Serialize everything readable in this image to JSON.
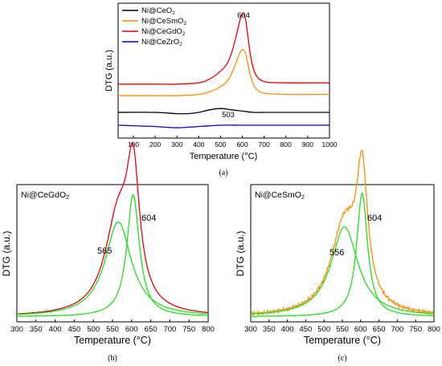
{
  "colors": {
    "ceo2": "#000000",
    "cesmo2": "#ff8c00",
    "cegdo2": "#e8000b",
    "cezro2": "#0000e0",
    "fit": "#22dd22"
  },
  "chart_data": [
    {
      "type": "line",
      "panel_label": "(a)",
      "xlabel": "Temperature (°C)",
      "ylabel": "DTG (a.u.)",
      "xlim": [
        30,
        1000
      ],
      "xticks": [
        100,
        200,
        300,
        400,
        500,
        600,
        700,
        800,
        900,
        1000
      ],
      "x_tick_labels": [
        "100",
        "200",
        "300",
        "400",
        "500",
        "600",
        "700",
        "800",
        "900",
        "1000"
      ],
      "y_scale": "arbitrary units, no tick values",
      "legend_placement": "top-left",
      "series": [
        {
          "name": "Ni@CeO2",
          "legend_base": "Ni@CeO",
          "legend_sub": "2",
          "color_key": "ceo2",
          "x": [
            30,
            200,
            300,
            350,
            400,
            450,
            503,
            550,
            600,
            650,
            700,
            800,
            1000
          ],
          "y": [
            0.2,
            0.2,
            0.19,
            0.19,
            0.2,
            0.22,
            0.23,
            0.22,
            0.21,
            0.2,
            0.2,
            0.2,
            0.2
          ]
        },
        {
          "name": "Ni@CeSmO2",
          "legend_base": "Ni@CeSmO",
          "legend_sub": "2",
          "color_key": "cesmo2",
          "x": [
            30,
            200,
            300,
            400,
            450,
            500,
            530,
            550,
            570,
            585,
            595,
            604,
            615,
            625,
            640,
            660,
            700,
            800,
            1000
          ],
          "y": [
            0.33,
            0.33,
            0.33,
            0.34,
            0.36,
            0.4,
            0.44,
            0.5,
            0.58,
            0.65,
            0.68,
            0.69,
            0.66,
            0.58,
            0.47,
            0.39,
            0.35,
            0.34,
            0.34
          ]
        },
        {
          "name": "Ni@CeGdO2",
          "legend_base": "Ni@CeGdO",
          "legend_sub": "2",
          "color_key": "cegdo2",
          "x": [
            30,
            200,
            300,
            400,
            450,
            500,
            530,
            550,
            570,
            585,
            595,
            604,
            615,
            625,
            640,
            660,
            700,
            800,
            1000
          ],
          "y": [
            0.42,
            0.42,
            0.42,
            0.43,
            0.46,
            0.52,
            0.58,
            0.66,
            0.78,
            0.89,
            0.95,
            0.97,
            0.92,
            0.8,
            0.62,
            0.5,
            0.44,
            0.43,
            0.43
          ]
        },
        {
          "name": "Ni@CeZrO2",
          "legend_base": "Ni@CeZrO",
          "legend_sub": "2",
          "color_key": "cezro2",
          "x": [
            30,
            200,
            300,
            400,
            500,
            600,
            700,
            800,
            1000
          ],
          "y": [
            0.1,
            0.09,
            0.08,
            0.09,
            0.1,
            0.1,
            0.1,
            0.1,
            0.1
          ]
        }
      ],
      "annotations": [
        {
          "text": "604",
          "x": 604
        },
        {
          "text": "503",
          "x": 503
        }
      ]
    },
    {
      "type": "line",
      "panel_label": "(b)",
      "title": "Ni@CeGdO2",
      "title_base": "Ni@CeGdO",
      "title_sub": "2",
      "xlabel": "Temperature (°C)",
      "ylabel": "DTG (a.u.)",
      "xlim": [
        300,
        800
      ],
      "xticks": [
        300,
        350,
        400,
        450,
        500,
        550,
        600,
        650,
        700,
        750,
        800
      ],
      "x_tick_labels": [
        "300",
        "350",
        "400",
        "450",
        "500",
        "550",
        "600",
        "650",
        "700",
        "750",
        "800"
      ],
      "series": [
        {
          "name": "Ni@CeGdO2 (measured)",
          "color_key": "cegdo2",
          "type": "lorentz-sum",
          "baseline": 0.02,
          "peaks": [
            {
              "center": 565,
              "height": 0.56,
              "hwhm": 42
            },
            {
              "center": 604,
              "height": 0.72,
              "hwhm": 20
            }
          ]
        },
        {
          "name": "fit 565",
          "color_key": "fit",
          "type": "lorentz",
          "baseline": 0.02,
          "center": 565,
          "height": 0.56,
          "hwhm": 42
        },
        {
          "name": "fit 604",
          "color_key": "fit",
          "type": "lorentz",
          "baseline": 0.02,
          "center": 604,
          "height": 0.72,
          "hwhm": 20
        }
      ],
      "annotations": [
        {
          "text": "604",
          "x": 604
        },
        {
          "text": "565",
          "x": 565
        }
      ]
    },
    {
      "type": "line",
      "panel_label": "(c)",
      "title": "Ni@CeSmO2",
      "title_base": "Ni@CeSmO",
      "title_sub": "2",
      "xlabel": "Temperature (°C)",
      "ylabel": "DTG (a.u.)",
      "xlim": [
        300,
        800
      ],
      "xticks": [
        300,
        350,
        400,
        450,
        500,
        550,
        600,
        650,
        700,
        750,
        800
      ],
      "x_tick_labels": [
        "300",
        "350",
        "400",
        "450",
        "500",
        "550",
        "600",
        "650",
        "700",
        "750",
        "800"
      ],
      "series": [
        {
          "name": "Ni@CeSmO2 (measured)",
          "color_key": "cesmo2",
          "type": "lorentz-sum",
          "baseline": 0.02,
          "noisy": true,
          "peaks": [
            {
              "center": 556,
              "height": 0.53,
              "hwhm": 45
            },
            {
              "center": 604,
              "height": 0.73,
              "hwhm": 18
            }
          ]
        },
        {
          "name": "fit 556",
          "color_key": "fit",
          "type": "lorentz",
          "baseline": 0.02,
          "center": 556,
          "height": 0.53,
          "hwhm": 45
        },
        {
          "name": "fit 604",
          "color_key": "fit",
          "type": "lorentz",
          "baseline": 0.02,
          "center": 604,
          "height": 0.73,
          "hwhm": 18
        }
      ],
      "annotations": [
        {
          "text": "604",
          "x": 604
        },
        {
          "text": "556",
          "x": 556
        }
      ]
    }
  ]
}
